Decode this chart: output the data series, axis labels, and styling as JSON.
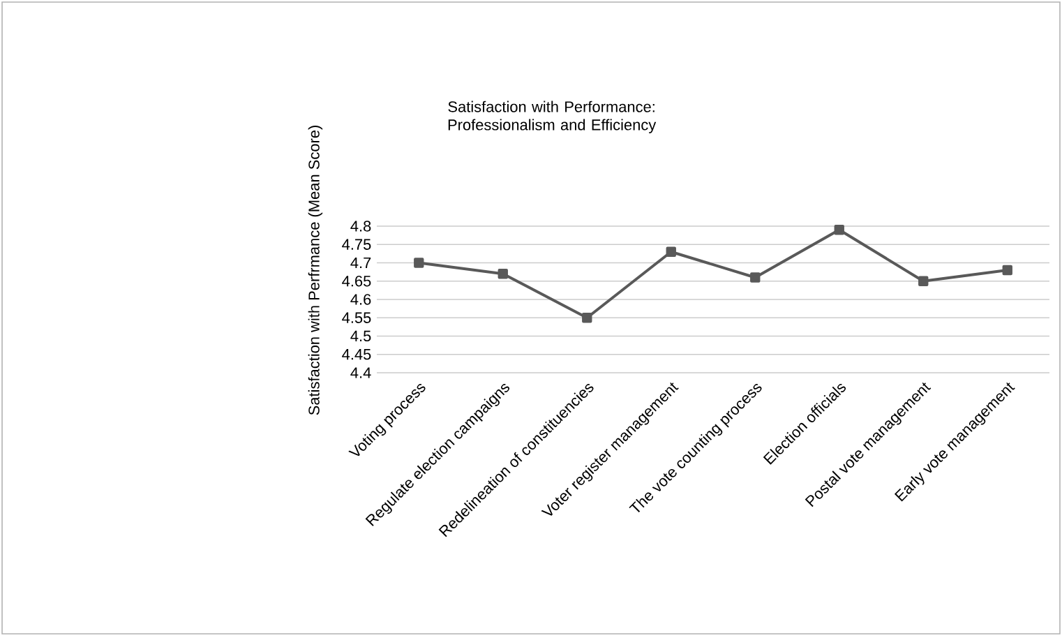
{
  "chart_data": {
    "type": "line",
    "title": "Satisfaction with Performance: Professionalism and Efficiency",
    "ylabel": "Satisfaction with Perfrmance (Mean Score)",
    "categories": [
      "Voting process",
      "Regulate election campaigns",
      "Redelineation of constituencies",
      "Voter register management",
      "The vote counting process",
      "Election officials",
      "Postal vote management",
      "Early vote management"
    ],
    "values": [
      4.7,
      4.67,
      4.55,
      4.73,
      4.66,
      4.79,
      4.65,
      4.68
    ],
    "color": "#595959",
    "ylim": [
      4.4,
      4.8
    ],
    "yticks": [
      4.4,
      4.45,
      4.5,
      4.55,
      4.6,
      4.65,
      4.7,
      4.75,
      4.8
    ],
    "grid": "y",
    "marker": "square",
    "line_style": "solid"
  }
}
